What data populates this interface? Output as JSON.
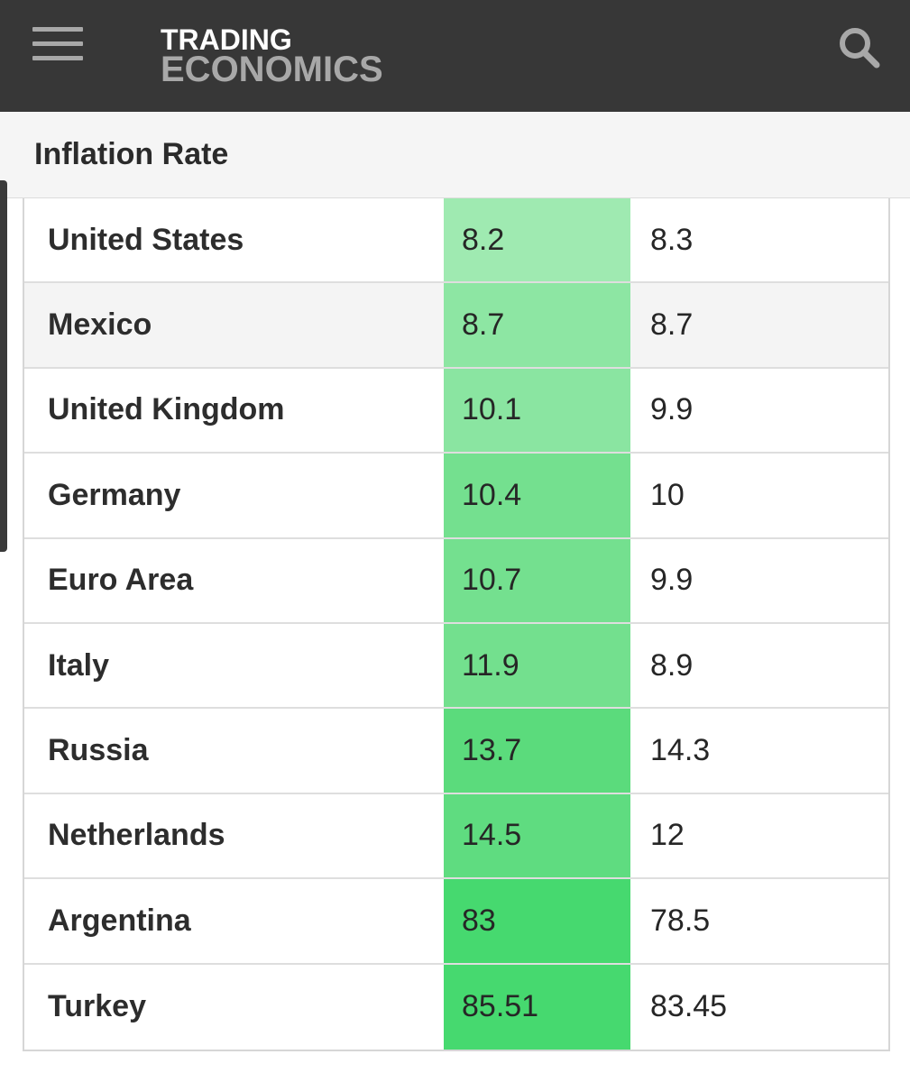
{
  "header": {
    "logo_line1": "TRADING",
    "logo_line2": "ECONOMICS",
    "menu_icon": "hamburger-menu-icon",
    "search_icon": "search-icon",
    "background_color": "#373737"
  },
  "page": {
    "title": "Inflation Rate"
  },
  "table": {
    "heat_color_light": "#9feab1",
    "heat_color_dark": "#46d96f",
    "rows": [
      {
        "country": "United States",
        "last": "8.2",
        "previous": "8.3",
        "color": "#9feab1"
      },
      {
        "country": "Mexico",
        "last": "8.7",
        "previous": "8.7",
        "color": "#8de6a3"
      },
      {
        "country": "United Kingdom",
        "last": "10.1",
        "previous": "9.9",
        "color": "#8ae5a1"
      },
      {
        "country": "Germany",
        "last": "10.4",
        "previous": "10",
        "color": "#74e08f"
      },
      {
        "country": "Euro Area",
        "last": "10.7",
        "previous": "9.9",
        "color": "#74e08f"
      },
      {
        "country": "Italy",
        "last": "11.9",
        "previous": "8.9",
        "color": "#73e08e"
      },
      {
        "country": "Russia",
        "last": "13.7",
        "previous": "14.3",
        "color": "#5bdb7c"
      },
      {
        "country": "Netherlands",
        "last": "14.5",
        "previous": "12",
        "color": "#5fdc80"
      },
      {
        "country": "Argentina",
        "last": "83",
        "previous": "78.5",
        "color": "#46d96f"
      },
      {
        "country": "Turkey",
        "last": "85.51",
        "previous": "83.45",
        "color": "#46d96f"
      }
    ]
  }
}
